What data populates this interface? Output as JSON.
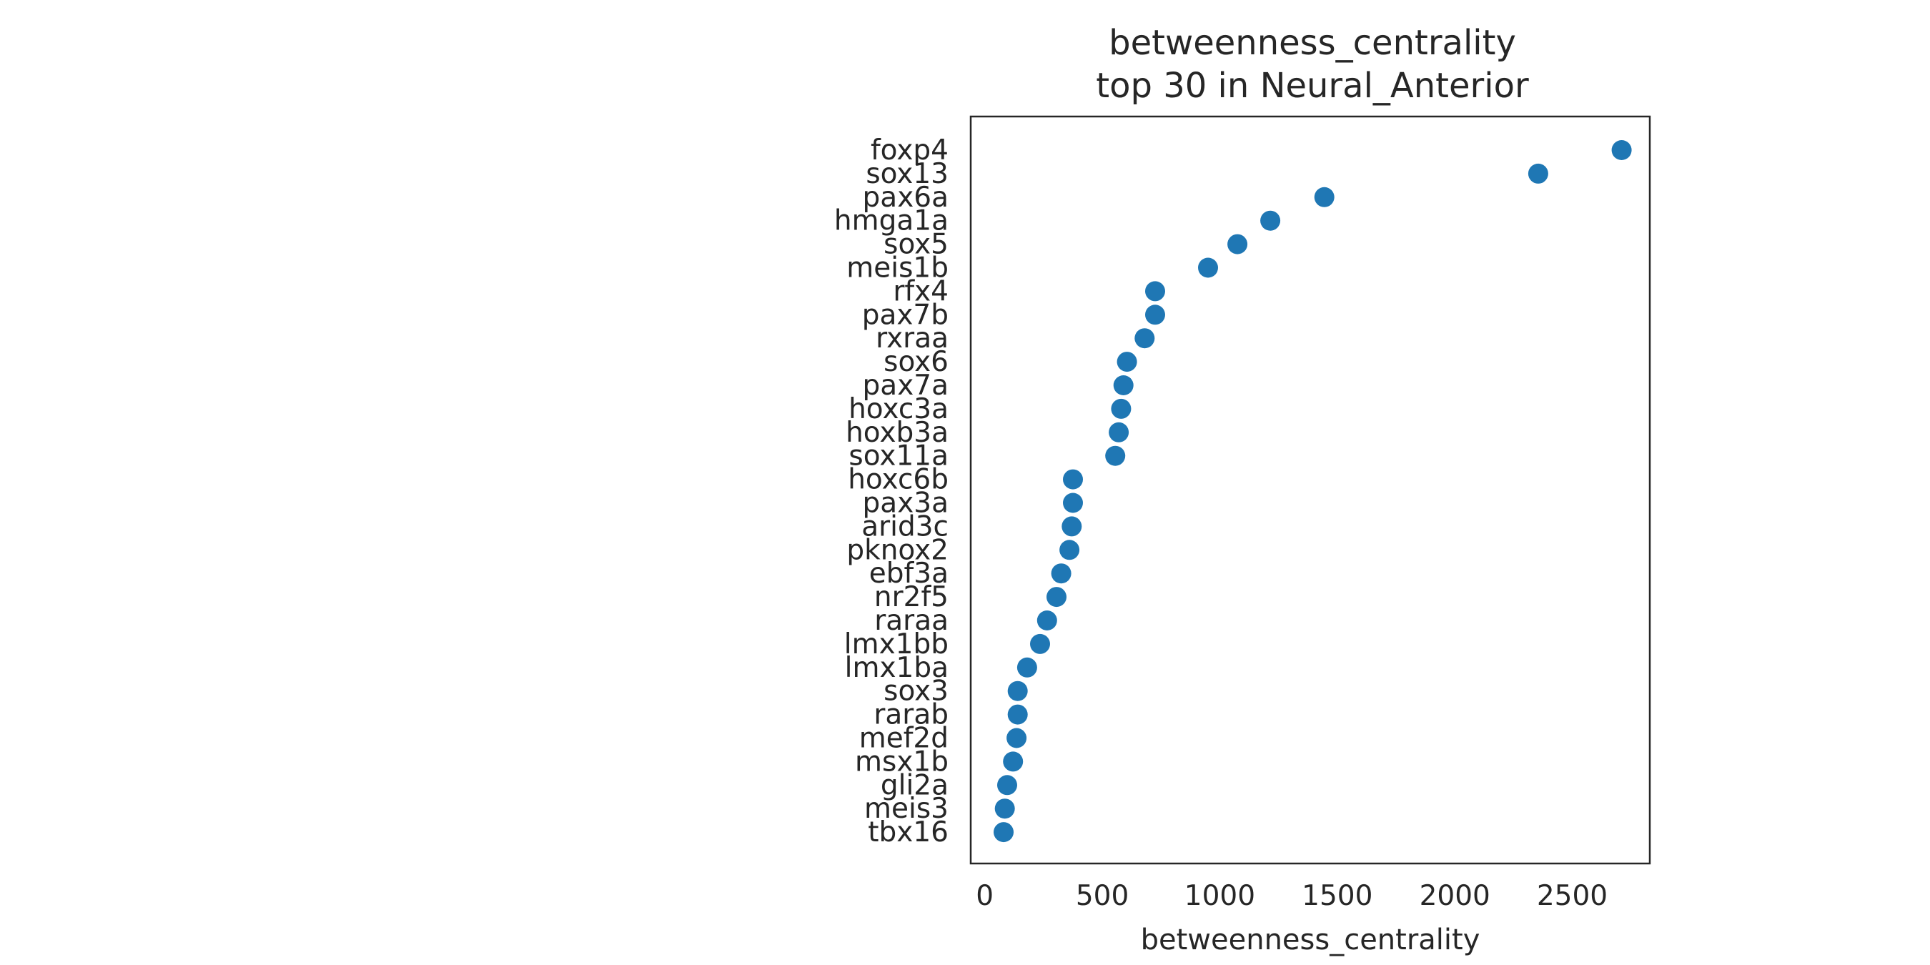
{
  "chart_data": {
    "type": "scatter",
    "title_line1": "betweenness_centrality",
    "title_line2": "top 30 in Neural_Anterior",
    "xlabel": "betweenness_centrality",
    "ylabel": "",
    "xlim": [
      -60,
      2830
    ],
    "xticks": [
      0,
      500,
      1000,
      1500,
      2000,
      2500
    ],
    "xtick_labels": [
      "0",
      "500",
      "1000",
      "1500",
      "2000",
      "2500"
    ],
    "grid": false,
    "legend": "none",
    "point_color": "#1f77b4",
    "categories": [
      "foxp4",
      "sox13",
      "pax6a",
      "hmga1a",
      "sox5",
      "meis1b",
      "rfx4",
      "pax7b",
      "rxraa",
      "sox6",
      "pax7a",
      "hoxc3a",
      "hoxb3a",
      "sox11a",
      "hoxc6b",
      "pax3a",
      "arid3c",
      "pknox2",
      "ebf3a",
      "nr2f5",
      "raraa",
      "lmx1bb",
      "lmx1ba",
      "sox3",
      "rarab",
      "mef2d",
      "msx1b",
      "gli2a",
      "meis3",
      "tbx16"
    ],
    "values": [
      2710,
      2355,
      1445,
      1215,
      1075,
      950,
      725,
      725,
      680,
      605,
      590,
      580,
      570,
      555,
      375,
      375,
      370,
      360,
      325,
      305,
      265,
      235,
      180,
      140,
      140,
      135,
      120,
      95,
      85,
      80
    ]
  }
}
